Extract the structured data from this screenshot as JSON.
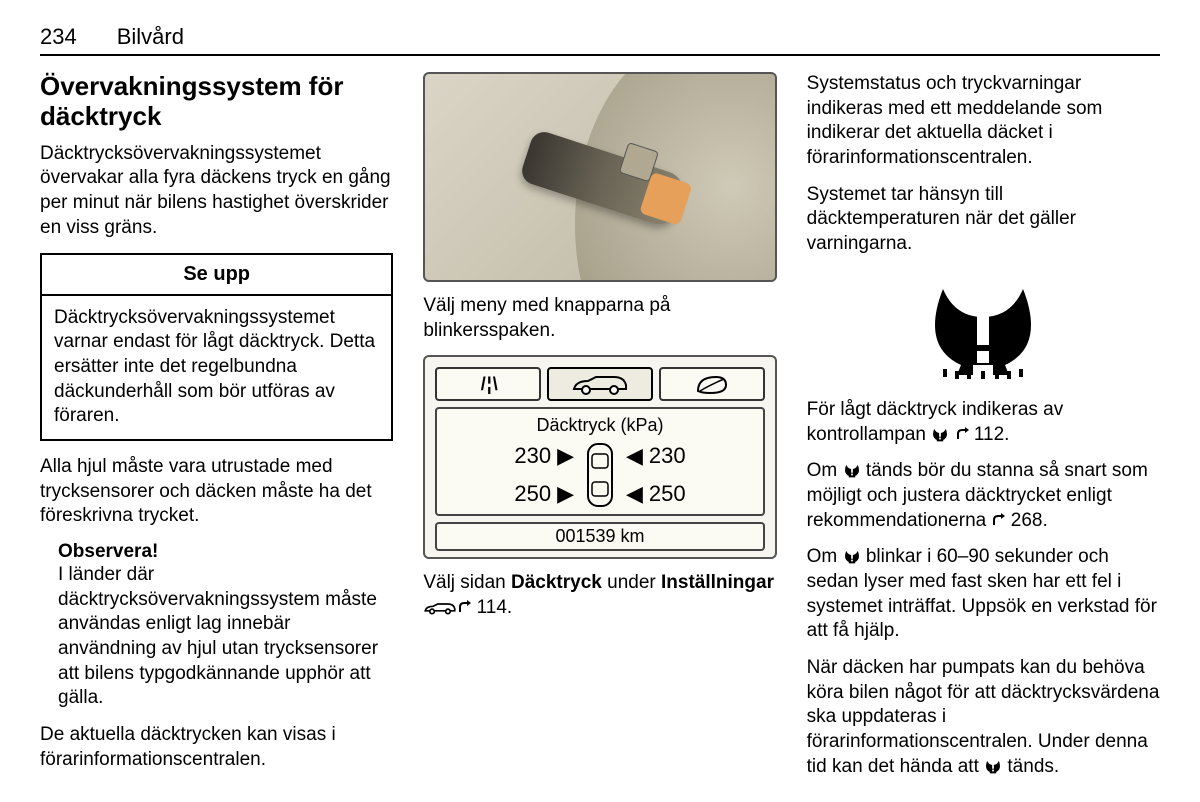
{
  "header": {
    "page": "234",
    "section": "Bilvård"
  },
  "col1": {
    "title": "Övervakningssystem för däcktryck",
    "intro": "Däcktrycksövervakningssystemet övervakar alla fyra däckens tryck en gång per minut när bilens hastighet överskrider en viss gräns.",
    "callout_title": "Se upp",
    "callout_body": "Däcktrycksövervakningssystemet varnar endast för lågt däcktryck. Detta ersätter inte det regelbundna däckunderhåll som bör utföras av föraren.",
    "p2": "Alla hjul måste vara utrustade med trycksensorer och däcken måste ha det föreskrivna trycket.",
    "note_label": "Observera!",
    "note_body": "I länder där däcktrycksövervakningssystem måste användas enligt lag innebär användning av hjul utan trycksensorer att bilens typgodkännande upphör att gälla.",
    "p3": "De aktuella däcktrycken kan visas i förarinformationscentralen."
  },
  "col2": {
    "cap1": "Välj meny med knapparna på blinkersspaken.",
    "display": {
      "title": "Däcktryck (kPa)",
      "front_left": "230",
      "front_right": "230",
      "rear_left": "250",
      "rear_right": "250",
      "odo": "001539 km"
    },
    "cap2a": "Välj sidan ",
    "cap2b": "Däcktryck",
    "cap2c": " under ",
    "cap2d": "Inställningar",
    "cap2_ref": " 114."
  },
  "col3": {
    "p1": "Systemstatus och tryckvarningar indikeras med ett meddelande som indikerar det aktuella däcket i förarinformationscentralen.",
    "p2": "Systemet tar hänsyn till däcktemperaturen när det gäller varningarna.",
    "p3a": "För lågt däcktryck indikeras av kontrollampan ",
    "p3_ref": " 112.",
    "p4a": "Om ",
    "p4b": " tänds bör du stanna så snart som möjligt och justera däcktrycket enligt rekommendationerna ",
    "p4_ref": " 268.",
    "p5a": "Om ",
    "p5b": " blinkar i 60–90 sekunder och sedan lyser med fast sken har ett fel i systemet inträffat. Uppsök en verkstad för att få hjälp.",
    "p6a": "När däcken har pumpats kan du behöva köra bilen något för att däcktrycksvärdena ska uppdateras i förarinformationscentralen. Under denna tid kan det hända att ",
    "p6b": " tänds."
  },
  "style": {
    "warn_color": "#000000",
    "display_border": "#555555"
  }
}
